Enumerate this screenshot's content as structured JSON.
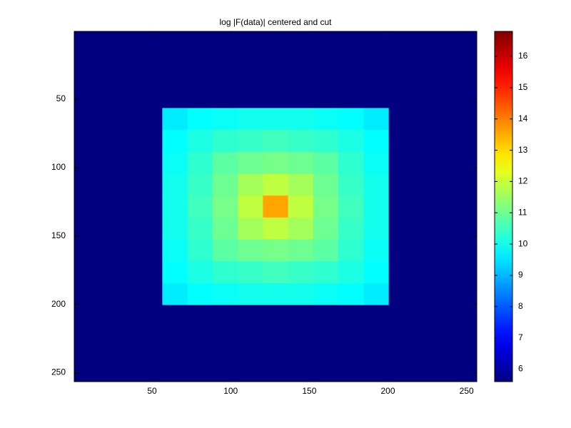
{
  "chart_data": {
    "type": "heatmap",
    "title": "log |F(data)| centered and cut",
    "colormap": "jet",
    "x_edges": [
      0.5,
      56.5,
      72.5,
      88.5,
      104.5,
      120.5,
      136.5,
      152.5,
      168.5,
      184.5,
      200.5,
      256.5
    ],
    "y_edges": [
      0.5,
      56.5,
      72.5,
      88.5,
      104.5,
      120.5,
      136.5,
      152.5,
      168.5,
      184.5,
      200.5,
      256.5
    ],
    "values": [
      [
        5.6,
        5.6,
        5.6,
        5.6,
        5.6,
        5.6,
        5.6,
        5.6,
        5.6,
        5.6,
        5.6
      ],
      [
        5.6,
        9.6,
        9.8,
        9.9,
        10.0,
        10.0,
        10.0,
        9.9,
        9.8,
        9.6,
        5.6
      ],
      [
        5.6,
        9.8,
        10.1,
        10.3,
        10.4,
        10.5,
        10.4,
        10.3,
        10.1,
        9.8,
        5.6
      ],
      [
        5.6,
        9.9,
        10.3,
        10.8,
        11.0,
        11.1,
        11.0,
        10.8,
        10.3,
        9.9,
        5.6
      ],
      [
        5.6,
        10.0,
        10.4,
        11.0,
        11.6,
        11.9,
        11.6,
        11.0,
        10.4,
        10.0,
        5.6
      ],
      [
        5.6,
        10.0,
        10.5,
        11.1,
        11.9,
        13.6,
        11.9,
        11.1,
        10.5,
        10.0,
        5.6
      ],
      [
        5.6,
        10.0,
        10.4,
        11.0,
        11.6,
        11.9,
        11.6,
        11.0,
        10.4,
        10.0,
        5.6
      ],
      [
        5.6,
        9.9,
        10.3,
        10.8,
        11.0,
        11.1,
        11.0,
        10.8,
        10.3,
        9.9,
        5.6
      ],
      [
        5.6,
        9.8,
        10.1,
        10.3,
        10.4,
        10.5,
        10.4,
        10.3,
        10.1,
        9.8,
        5.6
      ],
      [
        5.6,
        9.6,
        9.8,
        9.9,
        10.0,
        10.0,
        10.0,
        9.9,
        9.8,
        9.6,
        5.6
      ],
      [
        5.6,
        5.6,
        5.6,
        5.6,
        5.6,
        5.6,
        5.6,
        5.6,
        5.6,
        5.6,
        5.6
      ]
    ],
    "xlim": [
      0.5,
      256.5
    ],
    "ylim": [
      256.5,
      0.5
    ],
    "xticks": [
      50,
      100,
      150,
      200,
      250
    ],
    "yticks": [
      50,
      100,
      150,
      200,
      250
    ],
    "clim": [
      5.6,
      16.8
    ],
    "cticks": [
      6,
      7,
      8,
      9,
      10,
      11,
      12,
      13,
      14,
      15,
      16
    ]
  }
}
